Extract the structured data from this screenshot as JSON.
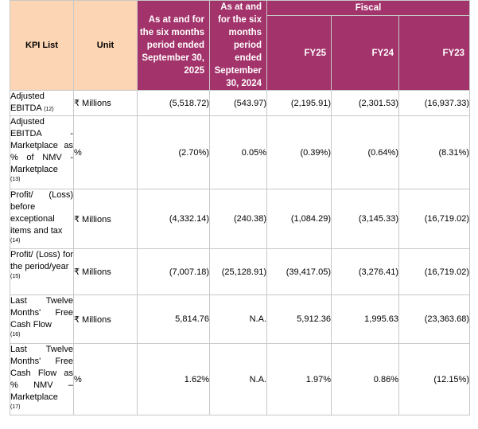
{
  "header": {
    "kpi_list": "KPI List",
    "unit": "Unit",
    "period_2025": "As at and for the six months period ended September 30, 2025",
    "period_2024": "As at and for the six months period ended September 30, 2024",
    "fiscal": "Fiscal",
    "fy25": "FY25",
    "fy24": "FY24",
    "fy23": "FY23"
  },
  "rows": [
    {
      "kpi": "Adjusted EBITDA",
      "ref": "(12)",
      "unit": "₹ Millions",
      "values": [
        "(5,518.72)",
        "(543.97)",
        "(2,195.91)",
        "(2,301.53)",
        "(16,937.33)"
      ]
    },
    {
      "kpi": "Adjusted EBITDA - Marketplace as % of NMV -Marketplace",
      "ref": "(13)",
      "unit": "%",
      "values": [
        "(2.70%)",
        "0.05%",
        "(0.39%)",
        "(0.64%)",
        "(8.31%)"
      ]
    },
    {
      "kpi": "Profit/ (Loss) before exceptional items and tax",
      "ref": "(14)",
      "unit": "₹ Millions",
      "values": [
        "(4,332.14)",
        "(240.38)",
        "(1,084.29)",
        "(3,145.33)",
        "(16,719.02)"
      ]
    },
    {
      "kpi": "Profit/ (Loss) for the period/year",
      "ref": "(15)",
      "unit": "₹ Millions",
      "values": [
        "(7,007.18)",
        "(25,128.91)",
        "(39,417.05)",
        "(3,276.41)",
        "(16,719.02)"
      ]
    },
    {
      "kpi": "Last Twelve Months' Free Cash Flow",
      "ref": "(16)",
      "unit": "₹ Millions",
      "values": [
        "5,814.76",
        "N.A.",
        "5,912.36",
        "1,995.63",
        "(23,363.68)"
      ]
    },
    {
      "kpi": "Last Twelve Months' Free Cash Flow as % NMV – Marketplace",
      "ref": "(17)",
      "unit": "%",
      "values": [
        "1.62%",
        "N.A.",
        "1.97%",
        "0.86%",
        "(12.15%)"
      ]
    }
  ]
}
